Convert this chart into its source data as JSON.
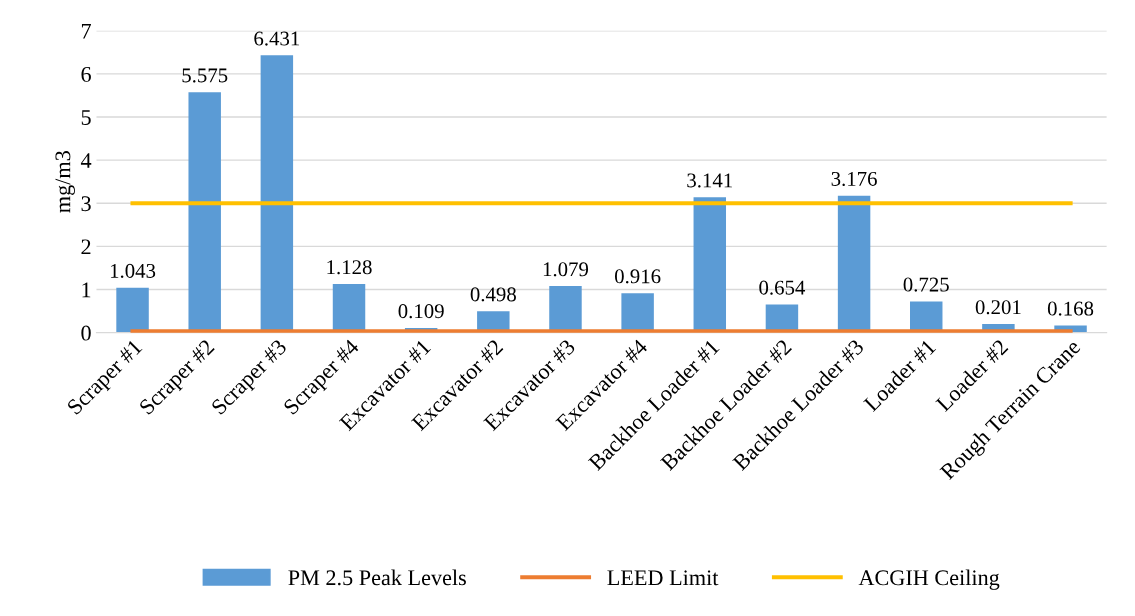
{
  "chart_data": {
    "type": "bar",
    "ylabel": "mg/m3",
    "categories": [
      "Scraper #1",
      "Scraper #2",
      "Scraper #3",
      "Scraper #4",
      "Excavator #1",
      "Excavator #2",
      "Excavator #3",
      "Excavator #4",
      "Backhoe Loader #1",
      "Backhoe Loader #2",
      "Backhoe Loader #3",
      "Loader #1",
      "Loader #2",
      "Rough Terrain Crane"
    ],
    "series": [
      {
        "name": "PM 2.5 Peak Levels",
        "color": "#5b9bd5",
        "values": [
          1.043,
          5.575,
          6.431,
          1.128,
          0.109,
          0.498,
          1.079,
          0.916,
          3.141,
          0.654,
          3.176,
          0.725,
          0.201,
          0.168
        ],
        "value_labels": [
          "1.043",
          "5.575",
          "6.431",
          "1.128",
          "0.109",
          "0.498",
          "1.079",
          "0.916",
          "3.141",
          "0.654",
          "3.176",
          "0.725",
          "0.201",
          "0.168"
        ]
      },
      {
        "name": "LEED Limit",
        "type": "line",
        "color": "#ed7d31",
        "values": [
          0.03,
          0.03,
          0.03,
          0.03,
          0.03,
          0.03,
          0.03,
          0.03,
          0.03,
          0.03,
          0.03,
          0.03,
          0.03,
          0.03
        ]
      },
      {
        "name": "ACGIH Ceiling",
        "type": "line",
        "color": "#ffc000",
        "values": [
          3,
          3,
          3,
          3,
          3,
          3,
          3,
          3,
          3,
          3,
          3,
          3,
          3,
          3
        ]
      }
    ],
    "ylim": [
      0,
      7
    ],
    "yticks": [
      0,
      1,
      2,
      3,
      4,
      5,
      6,
      7
    ],
    "grid": "y",
    "legend": "bottom"
  }
}
